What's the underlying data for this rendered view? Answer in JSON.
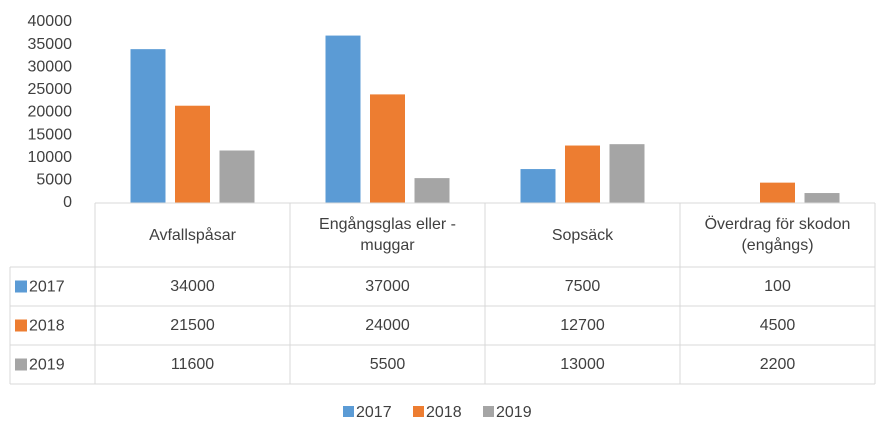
{
  "chart_data": {
    "type": "bar",
    "categories": [
      "Avfallspåsar",
      "Engångsglas eller -muggar",
      "Sopsäck",
      "Överdrag för skodon (engångs)"
    ],
    "series": [
      {
        "name": "2017",
        "color": "#5b9bd5",
        "values": [
          34000,
          37000,
          7500,
          100
        ]
      },
      {
        "name": "2018",
        "color": "#ed7d31",
        "values": [
          21500,
          24000,
          12700,
          4500
        ]
      },
      {
        "name": "2019",
        "color": "#a5a5a5",
        "values": [
          11600,
          5500,
          13000,
          2200
        ]
      }
    ],
    "ylim": [
      0,
      40000
    ],
    "yticks": [
      0,
      5000,
      10000,
      15000,
      20000,
      25000,
      30000,
      35000,
      40000
    ],
    "legend": "bottom",
    "data_table": true
  }
}
